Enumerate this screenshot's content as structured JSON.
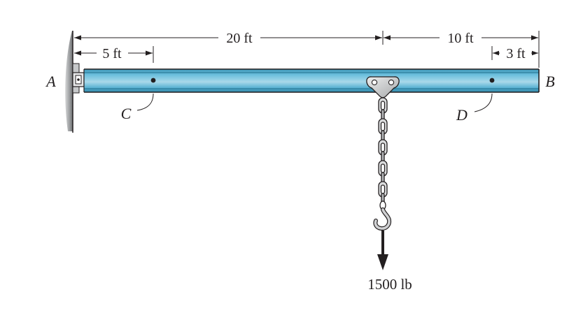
{
  "labels": {
    "support_end": "A",
    "free_end": "B",
    "point_c": "C",
    "point_d": "D"
  },
  "dimensions": {
    "a_to_load": "20 ft",
    "load_to_b": "10 ft",
    "a_to_c": "5 ft",
    "d_to_b": "3 ft"
  },
  "load": {
    "value": "1500 lb"
  },
  "colors": {
    "beam_fill": "#5bb3d3",
    "beam_highlight": "#a9d9ea",
    "beam_edge": "#231f20",
    "wall": "#8f9193",
    "line": "#231f20"
  }
}
